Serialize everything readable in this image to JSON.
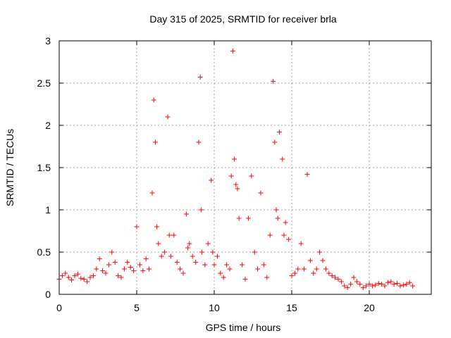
{
  "chart_data": {
    "type": "scatter",
    "title": "Day 315 of 2025, SRMTID for receiver brla",
    "xlabel": "GPS time / hours",
    "ylabel": "SRMTID / TECUs",
    "xlim": [
      0,
      24
    ],
    "ylim": [
      0,
      3
    ],
    "xticks": [
      0,
      5,
      10,
      15,
      20
    ],
    "yticks": [
      0,
      0.5,
      1,
      1.5,
      2,
      2.5,
      3
    ],
    "ytick_labels": [
      "0",
      "0.5",
      "1",
      "1.5",
      "2",
      "2.5",
      "3"
    ],
    "grid": true,
    "marker": "+",
    "color": "#ff0000",
    "series": [
      {
        "name": "SRMTID",
        "x": [
          0.0,
          0.2,
          0.4,
          0.6,
          0.8,
          1.0,
          1.2,
          1.4,
          1.6,
          1.8,
          2.0,
          2.2,
          2.4,
          2.6,
          2.8,
          3.0,
          3.2,
          3.4,
          3.6,
          3.8,
          4.0,
          4.2,
          4.4,
          4.6,
          4.8,
          5.0,
          5.2,
          5.4,
          5.6,
          5.8,
          6.0,
          6.1,
          6.2,
          6.3,
          6.4,
          6.6,
          6.8,
          7.0,
          7.1,
          7.2,
          7.4,
          7.6,
          7.8,
          8.0,
          8.2,
          8.3,
          8.4,
          8.6,
          8.8,
          9.0,
          9.1,
          9.15,
          9.2,
          9.4,
          9.6,
          9.8,
          9.9,
          10.0,
          10.2,
          10.4,
          10.6,
          10.8,
          11.0,
          11.1,
          11.2,
          11.3,
          11.4,
          11.5,
          11.6,
          11.8,
          12.0,
          12.2,
          12.4,
          12.6,
          12.8,
          13.0,
          13.2,
          13.4,
          13.6,
          13.8,
          13.9,
          14.0,
          14.1,
          14.2,
          14.4,
          14.5,
          14.6,
          14.8,
          15.0,
          15.2,
          15.4,
          15.6,
          15.8,
          16.0,
          16.2,
          16.4,
          16.6,
          16.8,
          17.0,
          17.2,
          17.4,
          17.6,
          17.8,
          18.0,
          18.2,
          18.4,
          18.6,
          18.8,
          19.0,
          19.2,
          19.4,
          19.6,
          19.8,
          20.0,
          20.2,
          20.4,
          20.6,
          20.8,
          21.0,
          21.2,
          21.4,
          21.6,
          21.8,
          22.0,
          22.2,
          22.4,
          22.6,
          22.8
        ],
        "y": [
          0.18,
          0.22,
          0.25,
          0.2,
          0.17,
          0.22,
          0.24,
          0.19,
          0.18,
          0.15,
          0.2,
          0.22,
          0.3,
          0.42,
          0.28,
          0.25,
          0.35,
          0.5,
          0.38,
          0.22,
          0.2,
          0.3,
          0.38,
          0.32,
          0.28,
          0.8,
          0.35,
          0.28,
          0.42,
          0.3,
          1.2,
          2.3,
          1.8,
          0.8,
          0.6,
          0.45,
          0.5,
          2.1,
          0.7,
          0.45,
          0.7,
          0.38,
          0.3,
          0.25,
          0.95,
          0.55,
          0.6,
          0.45,
          0.38,
          1.8,
          2.57,
          1.0,
          0.5,
          0.35,
          0.6,
          1.35,
          0.5,
          0.35,
          0.45,
          0.25,
          0.2,
          0.35,
          0.3,
          1.4,
          2.88,
          1.6,
          1.3,
          1.25,
          0.9,
          0.35,
          0.18,
          0.9,
          1.4,
          0.5,
          0.3,
          1.2,
          0.35,
          0.2,
          0.7,
          2.52,
          1.8,
          1.0,
          0.9,
          1.92,
          1.6,
          0.7,
          0.85,
          0.65,
          0.22,
          0.25,
          0.3,
          0.6,
          0.3,
          1.42,
          0.4,
          0.25,
          0.3,
          0.5,
          0.4,
          0.3,
          0.25,
          0.22,
          0.2,
          0.18,
          0.15,
          0.1,
          0.08,
          0.12,
          0.2,
          0.15,
          0.12,
          0.08,
          0.1,
          0.12,
          0.1,
          0.11,
          0.13,
          0.12,
          0.1,
          0.14,
          0.15,
          0.12,
          0.13,
          0.1,
          0.11,
          0.12,
          0.14,
          0.1
        ]
      }
    ]
  }
}
